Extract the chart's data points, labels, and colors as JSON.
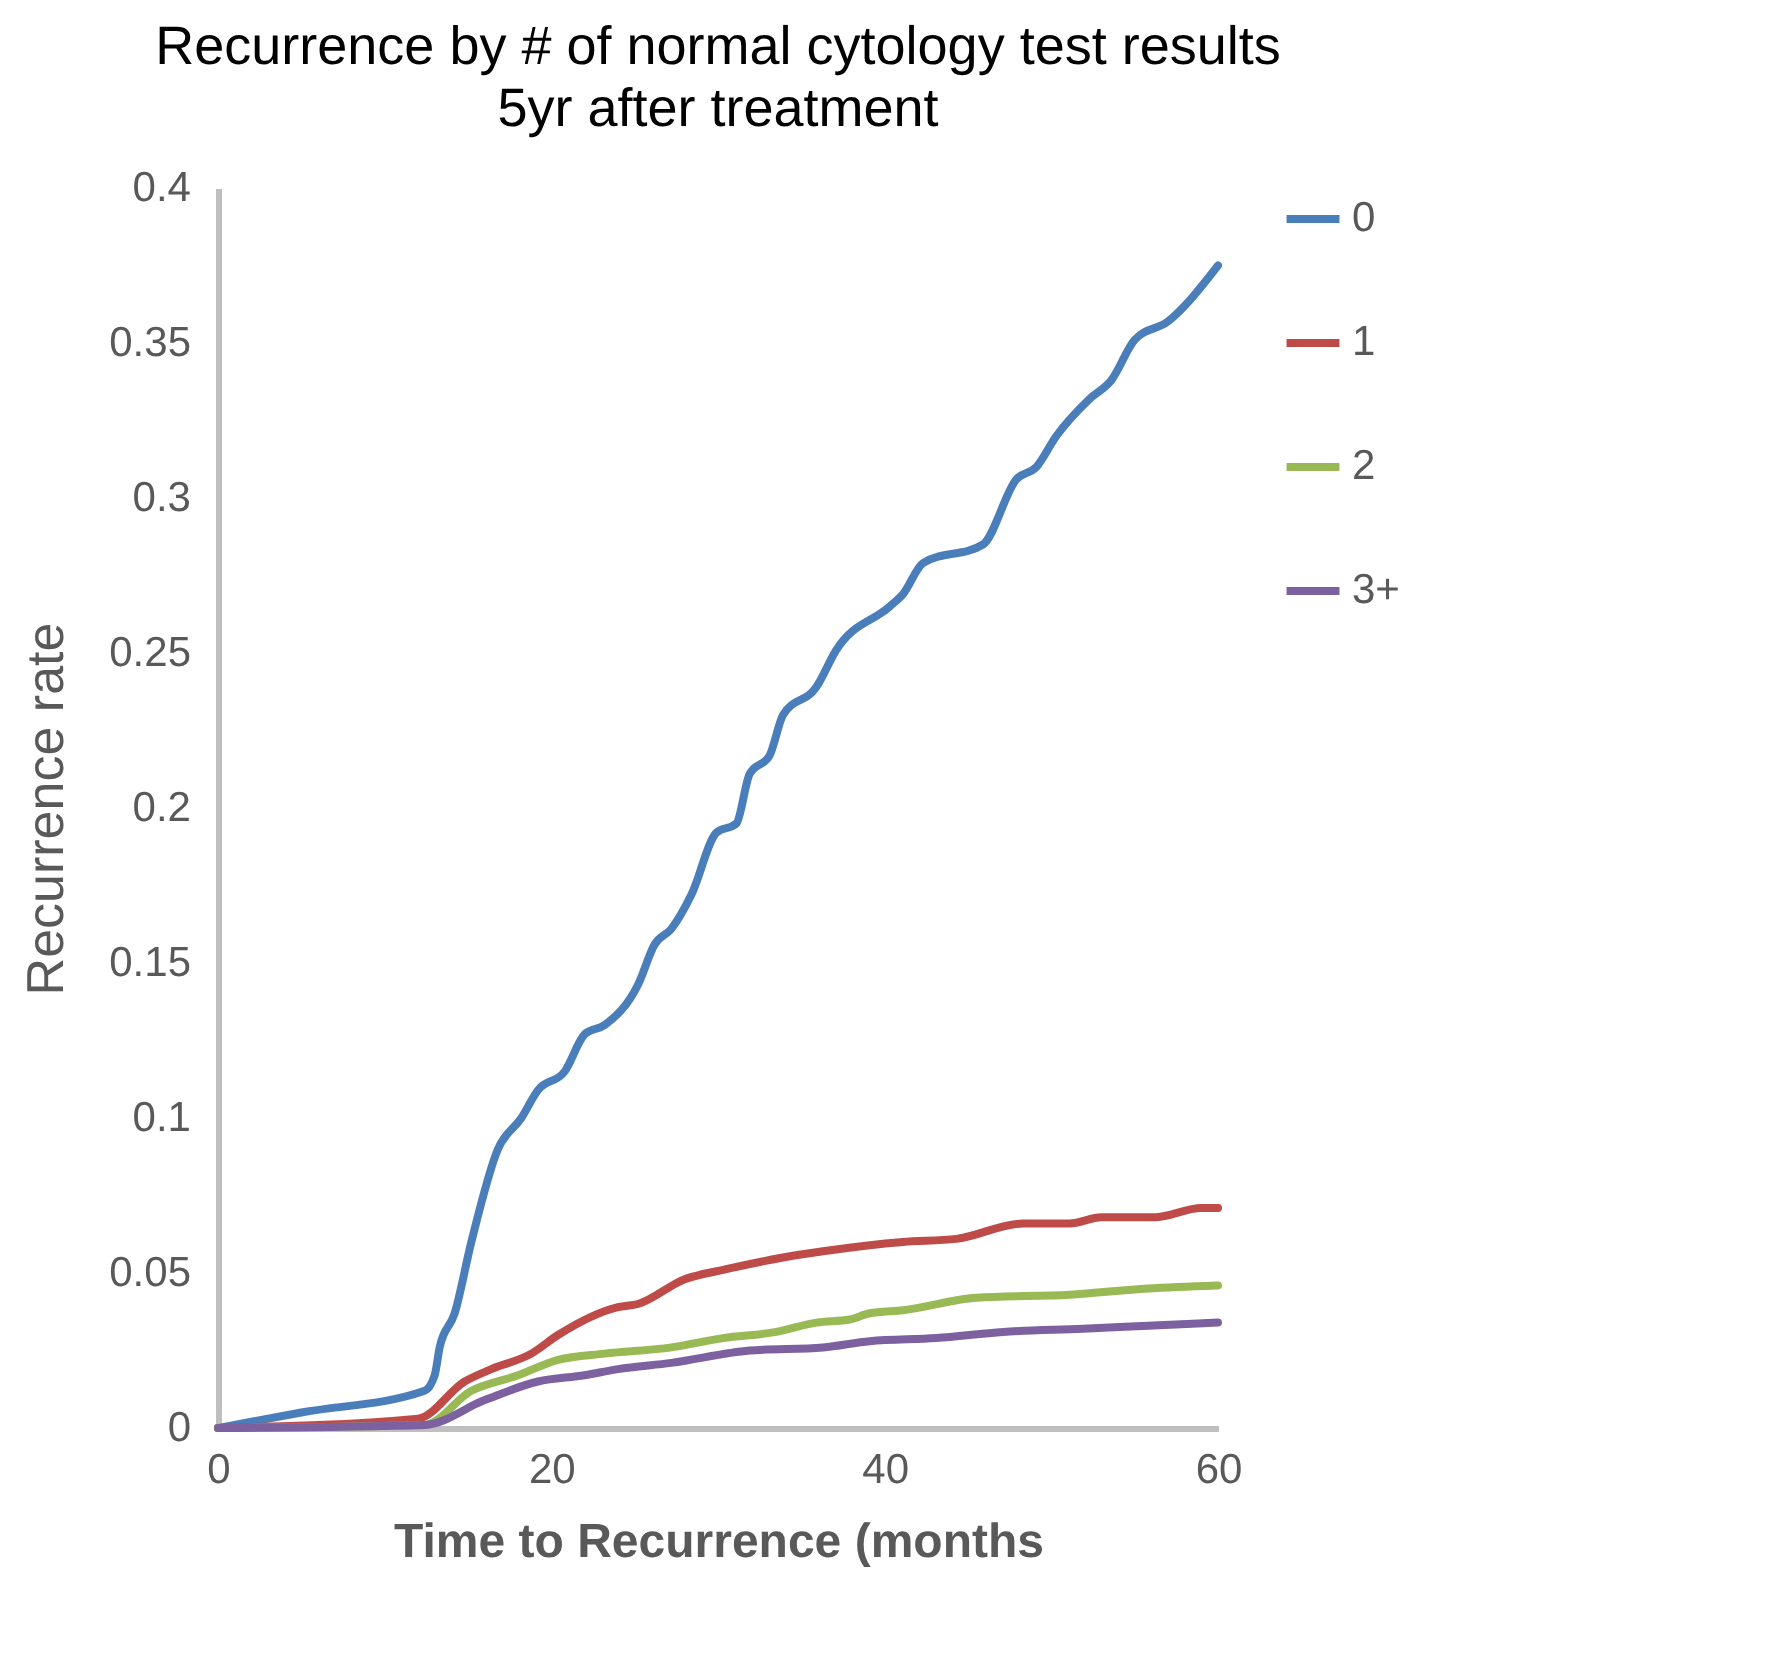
{
  "chart_data": {
    "type": "line",
    "title": "Recurrence by # of normal cytology test results",
    "subtitle": "5yr after treatment",
    "xlabel": "Time to Recurrence (months",
    "ylabel": "Recurrence rate",
    "xlim": [
      0,
      60
    ],
    "xticks": [
      0,
      20,
      40,
      60
    ],
    "ylim": [
      0,
      0.4
    ],
    "yticks": [
      0,
      0.05,
      0.1,
      0.15,
      0.2,
      0.25,
      0.3,
      0.35,
      0.4
    ],
    "grid": false,
    "legend": "right",
    "marker": "none",
    "line_style": "solid",
    "series": [
      {
        "name": "0",
        "color": "#4a7ebb",
        "x": [
          0,
          5,
          12.4,
          13,
          13.3,
          14.2,
          15.2,
          16.8,
          18.2,
          19.2,
          20.8,
          22,
          23.2,
          25.2,
          26.2,
          27.2,
          28.4,
          29.9,
          31.1,
          31.9,
          33.1,
          33.9,
          35.9,
          37.1,
          40.3,
          41.1,
          42.3,
          45.9,
          47.9,
          49.1,
          50.3,
          52.3,
          53.6,
          55,
          57,
          60
        ],
        "values": [
          0,
          0.005,
          0.012,
          0.017,
          0.026,
          0.037,
          0.06,
          0.09,
          0.1,
          0.109,
          0.115,
          0.127,
          0.13,
          0.143,
          0.156,
          0.161,
          0.172,
          0.192,
          0.195,
          0.211,
          0.217,
          0.23,
          0.239,
          0.251,
          0.265,
          0.269,
          0.279,
          0.285,
          0.306,
          0.31,
          0.32,
          0.332,
          0.338,
          0.351,
          0.357,
          0.375
        ]
      },
      {
        "name": "1",
        "color": "#be4b48",
        "x": [
          0,
          12,
          14.8,
          16.4,
          18.8,
          20.4,
          24,
          25.2,
          28,
          30.3,
          33.9,
          36.3,
          41.1,
          44.3,
          48.3,
          51.1,
          53,
          56.2,
          59,
          60
        ],
        "values": [
          0,
          0.003,
          0.015,
          0.019,
          0.024,
          0.03,
          0.039,
          0.04,
          0.048,
          0.051,
          0.055,
          0.057,
          0.06,
          0.061,
          0.066,
          0.066,
          0.068,
          0.068,
          0.071,
          0.071
        ]
      },
      {
        "name": "2",
        "color": "#98b954",
        "x": [
          0,
          12.4,
          15.2,
          18,
          20.4,
          23.2,
          27.2,
          30.3,
          33.5,
          35.9,
          37.9,
          39.1,
          41.1,
          45.5,
          51.1,
          55.8,
          60
        ],
        "values": [
          0,
          0.001,
          0.012,
          0.017,
          0.022,
          0.024,
          0.026,
          0.029,
          0.031,
          0.034,
          0.035,
          0.037,
          0.038,
          0.042,
          0.043,
          0.045,
          0.046
        ]
      },
      {
        "name": "3+",
        "color": "#7d60a0",
        "x": [
          0,
          12.4,
          16,
          19.2,
          22,
          24,
          27.2,
          31.9,
          36.3,
          39.1,
          43.1,
          47.1,
          51.9,
          55.8,
          60
        ],
        "values": [
          0,
          0.001,
          0.009,
          0.015,
          0.017,
          0.019,
          0.021,
          0.025,
          0.026,
          0.028,
          0.029,
          0.031,
          0.032,
          0.033,
          0.034
        ]
      }
    ]
  }
}
